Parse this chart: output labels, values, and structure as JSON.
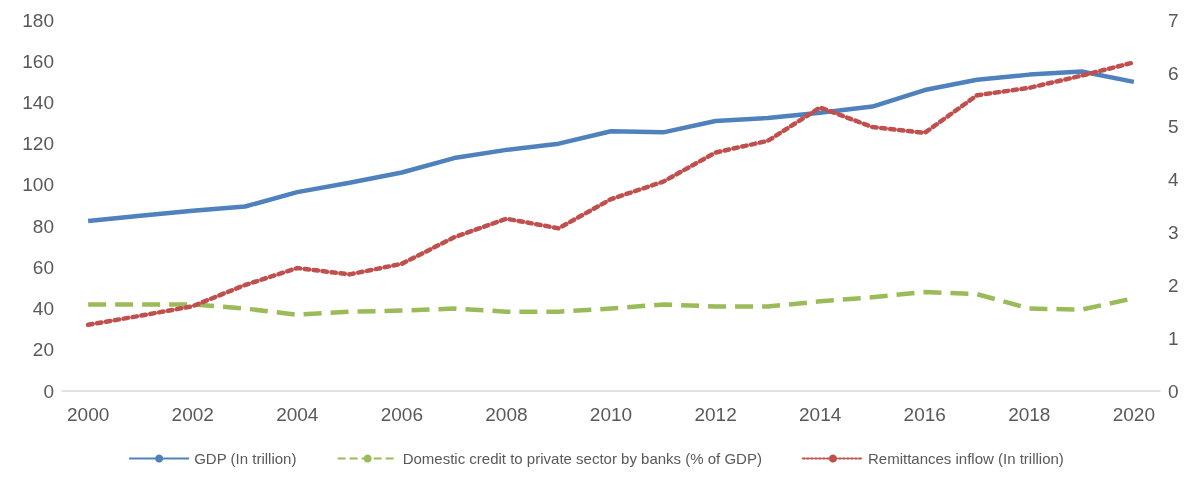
{
  "chart_data": {
    "type": "line",
    "categories": [
      "2000",
      null,
      "2002",
      null,
      "2004",
      null,
      "2006",
      null,
      "2008",
      null,
      "2010",
      null,
      "2012",
      null,
      "2014",
      null,
      "2016",
      null,
      "2018",
      null,
      "2020"
    ],
    "series": [
      {
        "name": "GDP (In trillion)",
        "color": "#4f81bd",
        "line_style": "solid",
        "values": [
          82.5,
          85,
          87.5,
          89.5,
          96.5,
          101,
          106,
          113,
          117,
          120,
          126,
          125.5,
          131,
          132.5,
          135,
          138,
          146,
          151,
          153.5,
          155,
          150
        ]
      },
      {
        "name": "Domestic credit to private sector by banks (% of GDP)",
        "color": "#9bbb59",
        "line_style": "dashed",
        "values": [
          42,
          42,
          42,
          40,
          37,
          38.5,
          39,
          40,
          38.5,
          38.5,
          40,
          42,
          41,
          41,
          43.5,
          45.5,
          48,
          47,
          40,
          39.5,
          45
        ]
      },
      {
        "name": "Remittances inflow (In trillion)",
        "color": "#c0504d",
        "line_style": "dotted",
        "axis": "y2",
        "values": [
          1.25,
          1.42,
          1.6,
          2.0,
          2.32,
          2.2,
          2.4,
          2.9,
          3.25,
          3.07,
          3.62,
          3.95,
          4.5,
          4.72,
          5.35,
          4.98,
          4.87,
          5.58,
          5.72,
          5.95,
          6.2
        ]
      }
    ],
    "ylim": [
      0,
      180
    ],
    "yticks": [
      0,
      20,
      40,
      60,
      80,
      100,
      120,
      140,
      160,
      180
    ],
    "y2lim": [
      0,
      7
    ],
    "y2ticks": [
      0,
      1,
      2,
      3,
      4,
      5,
      6,
      7
    ],
    "grid": false,
    "legend": "bottom",
    "marker": "none"
  }
}
